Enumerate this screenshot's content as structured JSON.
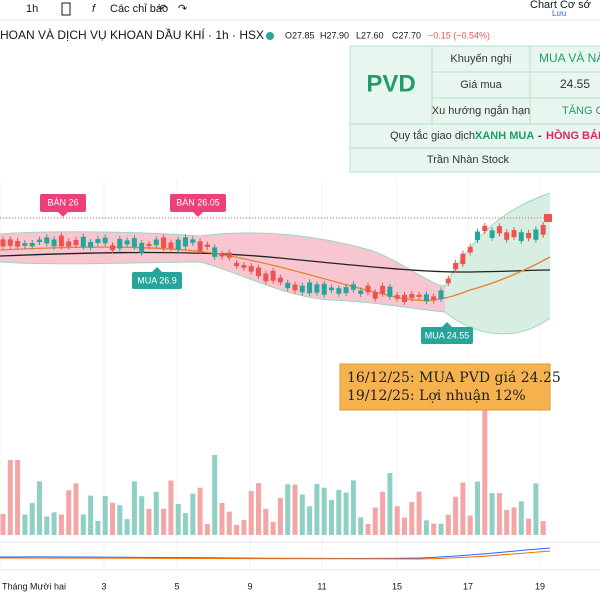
{
  "toolbar": {
    "interval": "1h",
    "indicators": "Các chỉ báo",
    "layout": "Chart Cơ sở",
    "save": "Lưu"
  },
  "header": {
    "symbol": "HOAN VÀ DỊCH VỤ KHOAN DẦU KHÍ · 1h · HSX",
    "ohlc": [
      "O27.85",
      "H27.90",
      "L27.60",
      "C27.70",
      "−0.15 (−0.54%)"
    ]
  },
  "panel": {
    "ticker": "PVD",
    "rows": [
      [
        "Khuyến nghị",
        "MUA VÀ NẮ"
      ],
      [
        "Giá mua",
        "24.55"
      ],
      [
        "Xu hướng ngắn hạn",
        "TĂNG G"
      ]
    ],
    "rule": {
      "label": "Quy tắc giao dịch:",
      "buy": "XANH MUA",
      "sep": "-",
      "sell": "HỒNG BÁN"
    },
    "author": "Trần Nhàn Stock"
  },
  "signals": [
    "BÁN 26",
    "BÁN 26.05",
    "MUA 26.9",
    "MUA 24.55"
  ],
  "note": [
    "16/12/25: MUA PVD giá 24.25",
    "19/12/25: Lợi nhuận 12%"
  ],
  "x_axis": [
    "Tháng Mười hai",
    "3",
    "5",
    "9",
    "11",
    "15",
    "17",
    "19"
  ]
}
